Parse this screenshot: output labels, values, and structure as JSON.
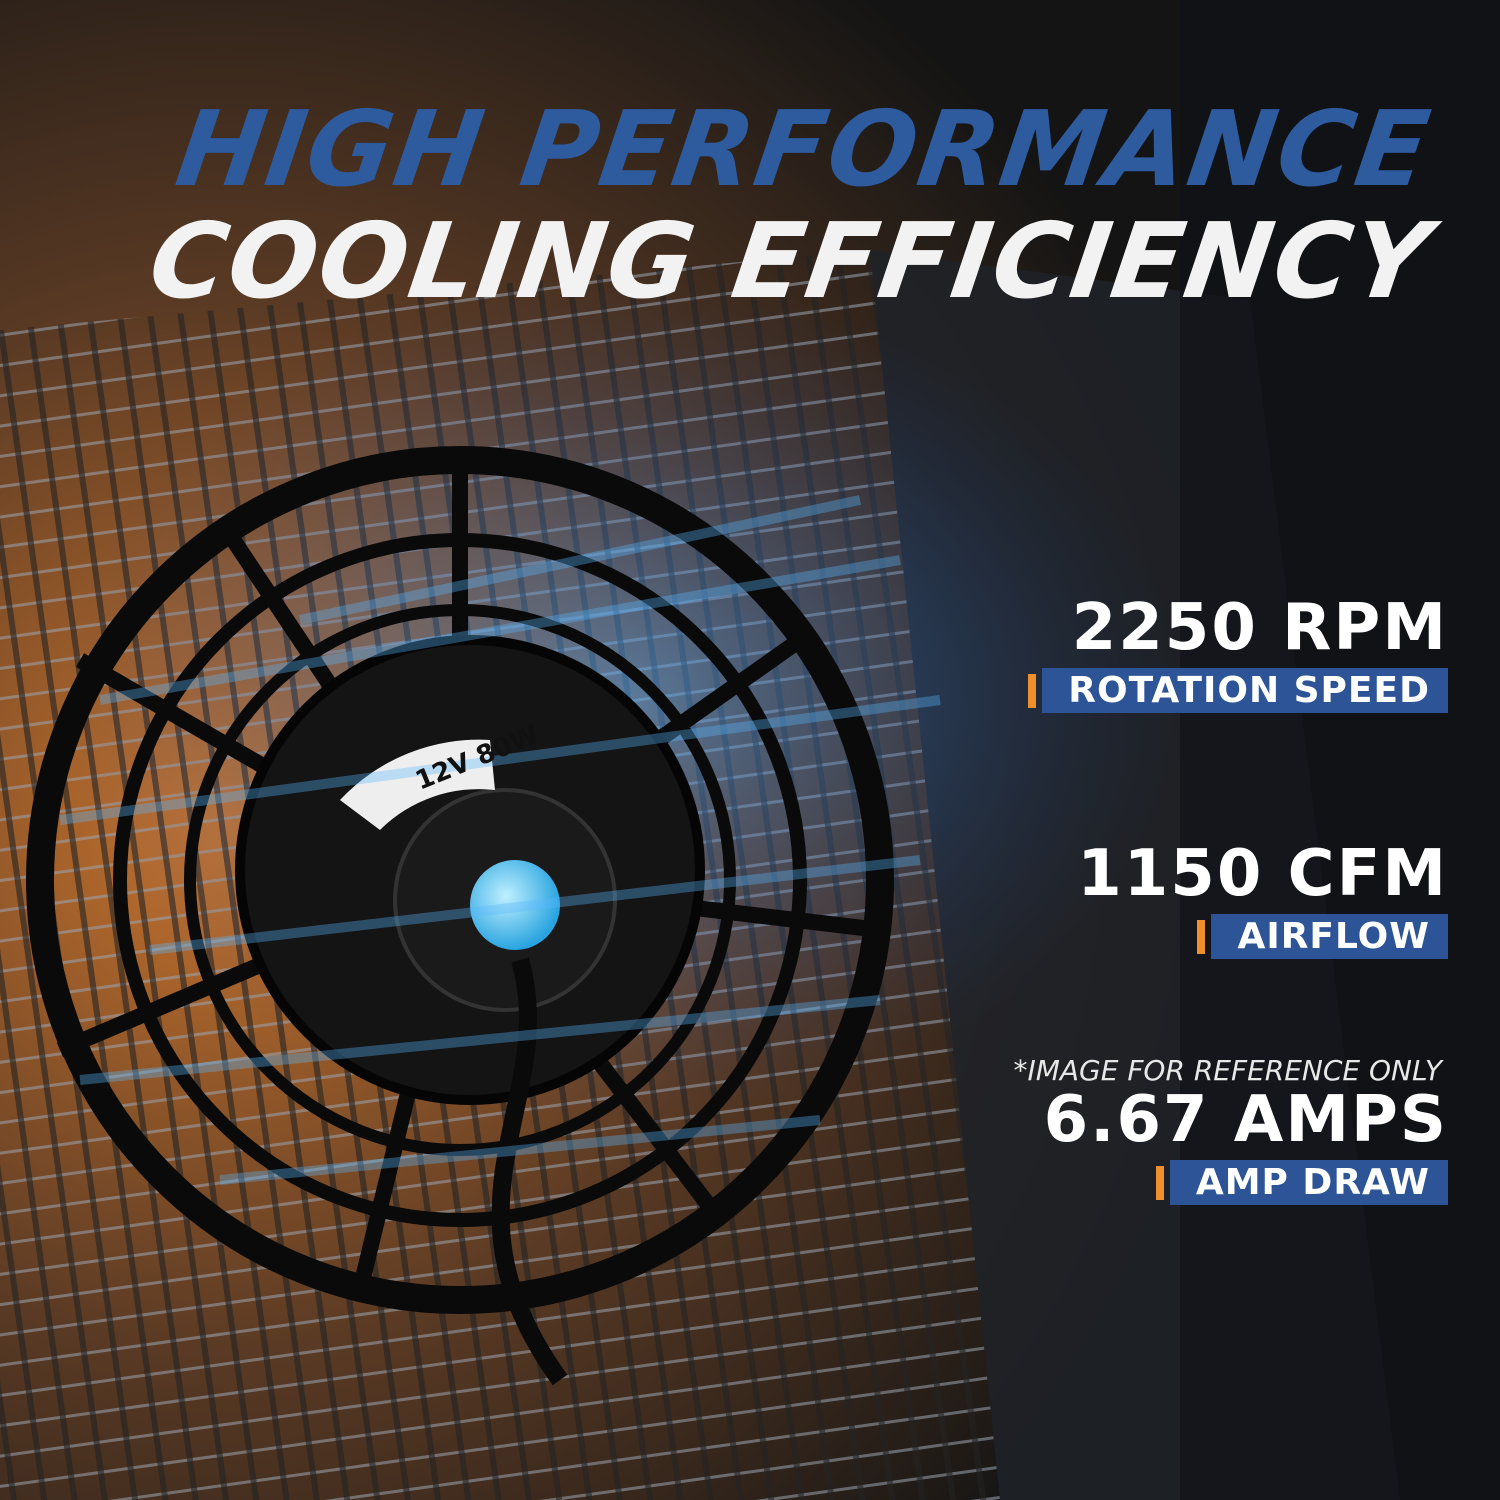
{
  "header": {
    "line1": "HIGH PERFORMANCE",
    "line2": "COOLING EFFICIENCY"
  },
  "fan_label": "12V 80W",
  "specs": [
    {
      "value": "2250 RPM",
      "label": "ROTATION SPEED"
    },
    {
      "value": "1150 CFM",
      "label": "AIRFLOW"
    },
    {
      "value": "6.67 AMPS",
      "label": "AMP DRAW"
    }
  ],
  "footnote": "*IMAGE FOR REFERENCE ONLY"
}
